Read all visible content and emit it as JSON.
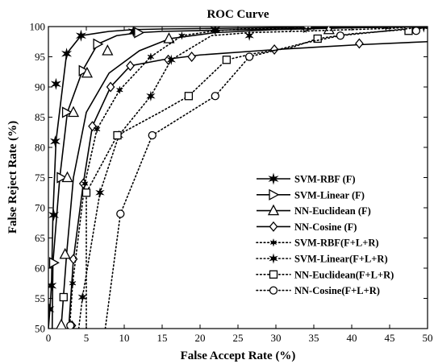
{
  "chart_data": {
    "type": "line",
    "title": "ROC Curve",
    "xlabel": "False Accept Rate (%)",
    "ylabel": "False Reject Rate (%)",
    "xlim": [
      0,
      50
    ],
    "ylim": [
      50,
      100
    ],
    "xticks": [
      "0",
      "5",
      "10",
      "15",
      "20",
      "25",
      "30",
      "35",
      "40",
      "45",
      "50"
    ],
    "yticks": [
      "50",
      "55",
      "60",
      "65",
      "70",
      "75",
      "80",
      "85",
      "90",
      "95",
      "100"
    ],
    "grid": false,
    "legend_position": "lower-right",
    "series": [
      {
        "name": "SVM-RBF (F)",
        "line": "solid",
        "marker": "star6",
        "color": "#000000",
        "x": [
          0,
          0.2,
          0.4,
          0.6,
          1.0,
          2.4,
          4.3,
          8,
          11.2,
          15,
          22,
          28,
          34,
          40,
          50
        ],
        "y": [
          50,
          53.2,
          57.1,
          68.8,
          81.0,
          95.5,
          98.5,
          99.2,
          99.5,
          99.6,
          99.7,
          99.8,
          99.9,
          99.9,
          100
        ],
        "markers_x": [
          0.1,
          0.4,
          0.7,
          0.9,
          1.0,
          2.4,
          4.3,
          11.2,
          22,
          34,
          49.5
        ],
        "markers_y": [
          53.2,
          57.1,
          68.8,
          81.0,
          90.5,
          95.5,
          98.5,
          99.2,
          99.5,
          99.9,
          100
        ]
      },
      {
        "name": "SVM-Linear (F)",
        "line": "solid",
        "marker": "triangle-right",
        "color": "#000000",
        "x": [
          0.5,
          0.6,
          1.5,
          2.5,
          4.5,
          6.5,
          9,
          12,
          15,
          22,
          30,
          40,
          50
        ],
        "y": [
          50,
          60.9,
          75.0,
          85.8,
          92.7,
          97.1,
          98.5,
          99.0,
          99.2,
          99.4,
          99.6,
          99.8,
          100
        ],
        "markers_x": [
          0.7,
          1.7,
          2.4,
          4.6,
          6.5,
          11.9,
          34.2
        ],
        "markers_y": [
          60.9,
          75.0,
          85.8,
          92.7,
          97.1,
          99.0,
          99.9
        ]
      },
      {
        "name": "NN-Euclidean (F)",
        "line": "solid",
        "marker": "triangle-up",
        "color": "#000000",
        "x": [
          1.5,
          1.7,
          2.4,
          3.3,
          5.0,
          8.0,
          12,
          16,
          22,
          30,
          40,
          50
        ],
        "y": [
          50,
          50.5,
          62.3,
          75.0,
          85.8,
          92.3,
          96.0,
          98.0,
          99.0,
          99.5,
          99.8,
          100
        ],
        "markers_x": [
          1.7,
          2.2,
          2.5,
          3.3,
          5.1,
          7.8,
          15.9,
          37
        ],
        "markers_y": [
          50.6,
          62.3,
          75.0,
          85.8,
          92.3,
          96.0,
          98.0,
          99.5
        ]
      },
      {
        "name": "NN-Cosine (F)",
        "line": "solid",
        "marker": "diamond",
        "color": "#000000",
        "x": [
          2.5,
          2.7,
          3.3,
          4.6,
          5.8,
          8.2,
          10.8,
          15,
          20,
          30,
          41,
          50
        ],
        "y": [
          50,
          50.5,
          61.5,
          74.0,
          83.5,
          90.0,
          93.5,
          94.5,
          95.3,
          96.2,
          97.0,
          97.5
        ],
        "markers_x": [
          3.1,
          3.3,
          4.6,
          5.8,
          8.2,
          10.8,
          15.8,
          18.9,
          29.8,
          41.0
        ],
        "markers_y": [
          50.5,
          61.5,
          74.0,
          83.5,
          90.0,
          93.5,
          94.5,
          95.0,
          96.2,
          97.2
        ]
      },
      {
        "name": "SVM-RBF(F+L+R)",
        "line": "dotted",
        "marker": "dot-star",
        "color": "#000000",
        "x": [
          2.8,
          3.2,
          4.8,
          6.4,
          9.4,
          13.5,
          17.6,
          22,
          26,
          32,
          40,
          50
        ],
        "y": [
          50,
          57.5,
          74.0,
          83.0,
          89.5,
          95.0,
          98.5,
          99.3,
          99.6,
          99.8,
          99.9,
          100
        ],
        "markers_x": [
          3.2,
          4.8,
          6.4,
          9.4,
          13.5,
          17.6,
          22,
          32,
          44.5,
          49.5
        ],
        "markers_y": [
          57.5,
          74.0,
          83.0,
          89.5,
          95.0,
          98.5,
          99.3,
          99.8,
          99.9,
          100
        ]
      },
      {
        "name": "SVM-Linear(F+L+R)",
        "line": "dotted",
        "marker": "star6-small",
        "color": "#000000",
        "x": [
          4.0,
          4.5,
          6.8,
          9.3,
          13.5,
          16.2,
          21.5,
          26.5,
          35,
          45,
          50
        ],
        "y": [
          50,
          55.2,
          72.5,
          82.0,
          88.5,
          94.5,
          98.5,
          99.0,
          99.3,
          99.7,
          100
        ],
        "markers_x": [
          4.5,
          6.8,
          9.3,
          13.5,
          16.2,
          26.5
        ],
        "markers_y": [
          55.2,
          72.5,
          82.0,
          88.5,
          94.5,
          98.5
        ]
      },
      {
        "name": "NN-Euclidean(F+L+R)",
        "line": "dotted",
        "marker": "square",
        "color": "#000000",
        "x": [
          5.0,
          5.0,
          9.1,
          15,
          18.5,
          23.5,
          27,
          32,
          35.5,
          40,
          47,
          50
        ],
        "y": [
          50,
          72.5,
          82.0,
          86.0,
          88.5,
          94.5,
          95.5,
          96.5,
          98.0,
          98.8,
          99.5,
          100
        ],
        "markers_x": [
          2.0,
          5.0,
          9.1,
          18.5,
          23.5,
          35.5,
          47.5
        ],
        "markers_y": [
          55.2,
          72.5,
          82.0,
          88.5,
          94.5,
          98.0,
          99.3
        ]
      },
      {
        "name": "NN-Cosine(F+L+R)",
        "line": "dotted",
        "marker": "circle",
        "color": "#000000",
        "x": [
          7.5,
          9.5,
          13.7,
          22,
          26.5,
          33.5,
          38.5,
          44,
          50
        ],
        "y": [
          50,
          69.0,
          82.0,
          88.5,
          95.0,
          97.2,
          98.5,
          99.2,
          100
        ],
        "markers_x": [
          2.9,
          9.5,
          13.7,
          22,
          26.5,
          38.5,
          48.5
        ],
        "markers_y": [
          50.5,
          69.0,
          82.0,
          88.5,
          95.0,
          98.5,
          99.3
        ]
      }
    ]
  }
}
